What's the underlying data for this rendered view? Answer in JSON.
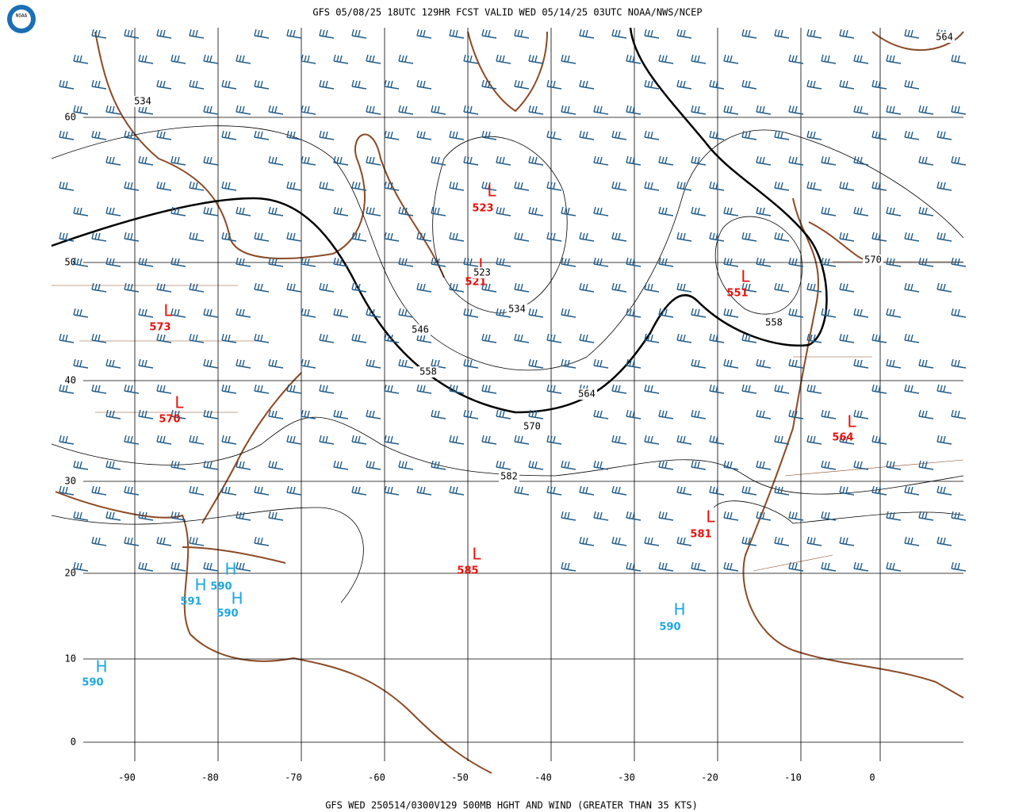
{
  "header": {
    "title": "GFS 05/08/25 18UTC 129HR FCST VALID WED 05/14/25 03UTC NOAA/NWS/NCEP"
  },
  "footer": {
    "caption": "GFS WED 250514/0300V129 500MB HGHT AND WIND (GREATER THAN 35 KTS)"
  },
  "logo": {
    "text": "NOAA"
  },
  "map": {
    "lat_labels": [
      "60",
      "50",
      "40",
      "30",
      "20",
      "10",
      "0"
    ],
    "lon_labels": [
      "-90",
      "-80",
      "-70",
      "-60",
      "-50",
      "-40",
      "-30",
      "-20",
      "-10",
      "0"
    ],
    "centers": [
      {
        "symbol": "L",
        "value": "523"
      },
      {
        "symbol": "L",
        "value": "521"
      },
      {
        "symbol": "L",
        "value": "573"
      },
      {
        "symbol": "L",
        "value": "570"
      },
      {
        "symbol": "L",
        "value": "551"
      },
      {
        "symbol": "L",
        "value": "564"
      },
      {
        "symbol": "L",
        "value": "581"
      },
      {
        "symbol": "L",
        "value": "585"
      },
      {
        "symbol": "H",
        "value": "590"
      },
      {
        "symbol": "H",
        "value": "591"
      },
      {
        "symbol": "H",
        "value": "590"
      },
      {
        "symbol": "H",
        "value": "590"
      },
      {
        "symbol": "H",
        "value": "590"
      }
    ],
    "contour_labels": [
      "534",
      "523",
      "534",
      "546",
      "558",
      "564",
      "570",
      "582",
      "558",
      "570",
      "564"
    ]
  }
}
